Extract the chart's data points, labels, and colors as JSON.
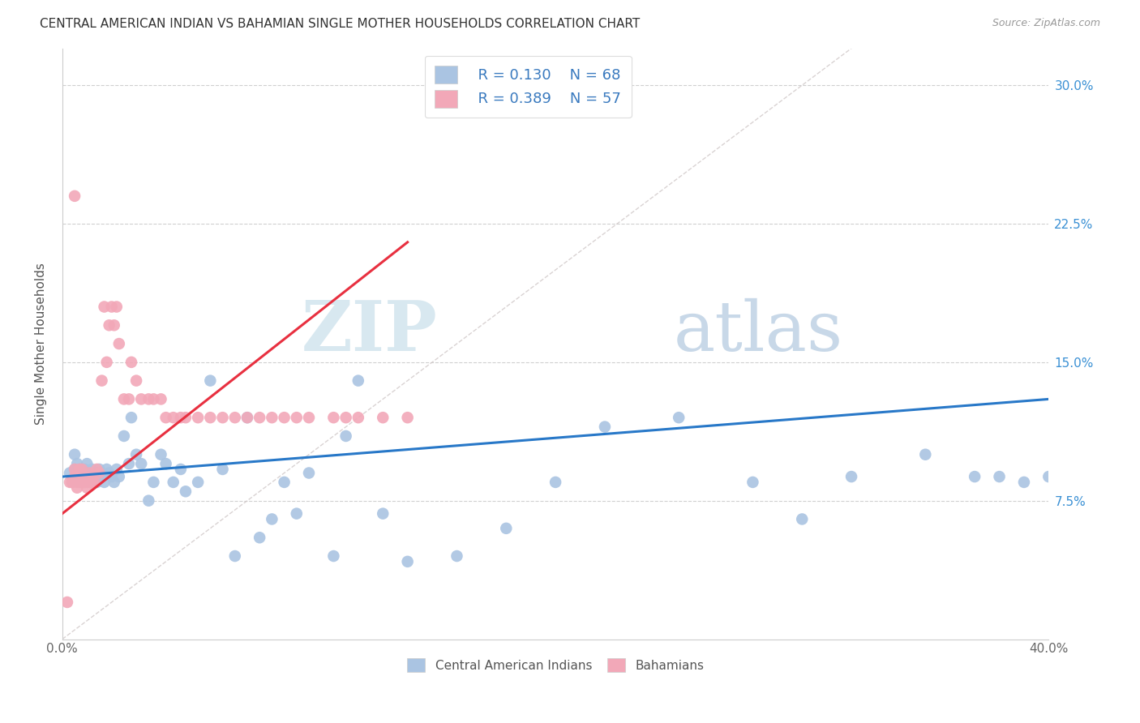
{
  "title": "CENTRAL AMERICAN INDIAN VS BAHAMIAN SINGLE MOTHER HOUSEHOLDS CORRELATION CHART",
  "source": "Source: ZipAtlas.com",
  "ylabel": "Single Mother Households",
  "y_ticks": [
    0.0,
    0.075,
    0.15,
    0.225,
    0.3
  ],
  "y_tick_labels_right": [
    "7.5%",
    "15.0%",
    "22.5%",
    "30.0%"
  ],
  "x_lim": [
    0.0,
    0.4
  ],
  "y_lim": [
    0.0,
    0.32
  ],
  "legend_r1": "R = 0.130",
  "legend_n1": "N = 68",
  "legend_r2": "R = 0.389",
  "legend_n2": "N = 57",
  "blue_color": "#aac4e2",
  "pink_color": "#f2a8b8",
  "blue_line_color": "#2878c8",
  "pink_line_color": "#e83040",
  "diag_line_color": "#d0c8c8",
  "watermark_zip": "ZIP",
  "watermark_atlas": "atlas",
  "blue_R": 0.13,
  "pink_R": 0.389,
  "blue_N": 68,
  "pink_N": 57,
  "blue_scatter_x": [
    0.003,
    0.004,
    0.005,
    0.005,
    0.006,
    0.006,
    0.007,
    0.007,
    0.008,
    0.008,
    0.009,
    0.009,
    0.01,
    0.01,
    0.011,
    0.012,
    0.012,
    0.013,
    0.014,
    0.015,
    0.016,
    0.017,
    0.018,
    0.019,
    0.02,
    0.021,
    0.022,
    0.023,
    0.025,
    0.027,
    0.028,
    0.03,
    0.032,
    0.035,
    0.037,
    0.04,
    0.042,
    0.045,
    0.048,
    0.05,
    0.055,
    0.06,
    0.065,
    0.07,
    0.075,
    0.08,
    0.085,
    0.09,
    0.095,
    0.1,
    0.11,
    0.115,
    0.12,
    0.13,
    0.14,
    0.16,
    0.18,
    0.2,
    0.22,
    0.25,
    0.28,
    0.3,
    0.32,
    0.35,
    0.37,
    0.38,
    0.39,
    0.4
  ],
  "blue_scatter_y": [
    0.09,
    0.085,
    0.1,
    0.092,
    0.095,
    0.088,
    0.092,
    0.085,
    0.09,
    0.088,
    0.085,
    0.092,
    0.088,
    0.095,
    0.085,
    0.092,
    0.088,
    0.09,
    0.085,
    0.092,
    0.088,
    0.085,
    0.092,
    0.09,
    0.088,
    0.085,
    0.092,
    0.088,
    0.11,
    0.095,
    0.12,
    0.1,
    0.095,
    0.075,
    0.085,
    0.1,
    0.095,
    0.085,
    0.092,
    0.08,
    0.085,
    0.14,
    0.092,
    0.045,
    0.12,
    0.055,
    0.065,
    0.085,
    0.068,
    0.09,
    0.045,
    0.11,
    0.14,
    0.068,
    0.042,
    0.045,
    0.06,
    0.085,
    0.115,
    0.12,
    0.085,
    0.065,
    0.088,
    0.1,
    0.088,
    0.088,
    0.085,
    0.088
  ],
  "pink_scatter_x": [
    0.003,
    0.004,
    0.005,
    0.005,
    0.006,
    0.006,
    0.007,
    0.007,
    0.008,
    0.008,
    0.009,
    0.009,
    0.01,
    0.01,
    0.011,
    0.012,
    0.012,
    0.013,
    0.014,
    0.015,
    0.016,
    0.017,
    0.018,
    0.019,
    0.02,
    0.021,
    0.022,
    0.023,
    0.025,
    0.027,
    0.028,
    0.03,
    0.032,
    0.035,
    0.037,
    0.04,
    0.042,
    0.045,
    0.048,
    0.05,
    0.055,
    0.06,
    0.065,
    0.07,
    0.075,
    0.08,
    0.085,
    0.09,
    0.095,
    0.1,
    0.11,
    0.115,
    0.12,
    0.13,
    0.14,
    0.005,
    0.002
  ],
  "pink_scatter_y": [
    0.085,
    0.085,
    0.088,
    0.092,
    0.085,
    0.082,
    0.092,
    0.088,
    0.085,
    0.092,
    0.085,
    0.088,
    0.082,
    0.085,
    0.09,
    0.085,
    0.088,
    0.085,
    0.092,
    0.09,
    0.14,
    0.18,
    0.15,
    0.17,
    0.18,
    0.17,
    0.18,
    0.16,
    0.13,
    0.13,
    0.15,
    0.14,
    0.13,
    0.13,
    0.13,
    0.13,
    0.12,
    0.12,
    0.12,
    0.12,
    0.12,
    0.12,
    0.12,
    0.12,
    0.12,
    0.12,
    0.12,
    0.12,
    0.12,
    0.12,
    0.12,
    0.12,
    0.12,
    0.12,
    0.12,
    0.24,
    0.02
  ],
  "blue_line_x": [
    0.0,
    0.4
  ],
  "blue_line_y": [
    0.088,
    0.13
  ],
  "pink_line_x": [
    0.0,
    0.14
  ],
  "pink_line_y": [
    0.068,
    0.215
  ],
  "diag_line_x": [
    0.0,
    0.32
  ],
  "diag_line_y": [
    0.0,
    0.32
  ]
}
